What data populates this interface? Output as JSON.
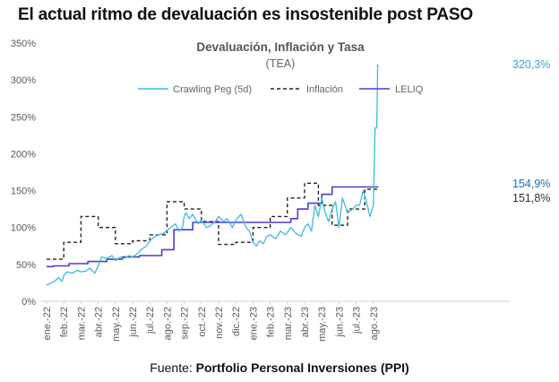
{
  "headline": "El actual ritmo de devaluación es insostenible post PASO",
  "source": {
    "prefix": "Fuente: ",
    "name": "Portfolio Personal Inversiones (PPI)"
  },
  "colors": {
    "crawling": "#3dbbdb",
    "inflacion": "#222222",
    "leliq": "#4a3fc8",
    "annot_crawling": "#2aa9d6",
    "annot_leliq": "#1f6fb3",
    "annot_inflacion": "#333333",
    "axis": "#d0d0d0"
  },
  "chart_data": {
    "type": "line",
    "title": "Devaluación, Inflación y Tasa",
    "subtitle": "(TEA)",
    "x_ticks": [
      "ene.-22",
      "feb.-22",
      "mar.-22",
      "abr.-22",
      "may.-22",
      "jun.-22",
      "jul.-22",
      "ago.-22",
      "sep.-22",
      "oct.-22",
      "nov.-22",
      "dic.-22",
      "ene.-23",
      "feb.-23",
      "mar.-23",
      "abr.-23",
      "may.-23",
      "jun.-23",
      "jul.-23",
      "ago.-23"
    ],
    "x_range": [
      0,
      19.5
    ],
    "y_ticks": [
      0,
      50,
      100,
      150,
      200,
      250,
      300,
      350
    ],
    "y_tick_labels": [
      "0%",
      "50%",
      "100%",
      "150%",
      "200%",
      "250%",
      "300%",
      "350%"
    ],
    "ylim": [
      0,
      350
    ],
    "legend": [
      "Crawling Peg (5d)",
      "Inflación",
      "LELIQ"
    ],
    "annotations": [
      {
        "series": "Crawling Peg (5d)",
        "text": "320,3%",
        "value": 320.3
      },
      {
        "series": "LELIQ",
        "text": "154,9%",
        "value": 154.9
      },
      {
        "series": "Inflación",
        "text": "151,8%",
        "value": 151.8
      }
    ],
    "series": [
      {
        "name": "Crawling Peg (5d)",
        "style": "solid-thin",
        "x": [
          0,
          0.3,
          0.5,
          0.7,
          0.9,
          1.0,
          1.2,
          1.5,
          1.8,
          2.0,
          2.3,
          2.5,
          2.8,
          3.0,
          3.2,
          3.5,
          3.8,
          4.0,
          4.3,
          4.5,
          4.8,
          5.0,
          5.3,
          5.5,
          5.8,
          6.0,
          6.3,
          6.5,
          6.8,
          7.0,
          7.2,
          7.5,
          7.7,
          7.9,
          8.0,
          8.1,
          8.3,
          8.5,
          8.8,
          9.0,
          9.3,
          9.5,
          9.8,
          10.0,
          10.3,
          10.5,
          10.8,
          11.0,
          11.3,
          11.6,
          11.8,
          12.0,
          12.2,
          12.4,
          12.6,
          12.8,
          13.0,
          13.3,
          13.6,
          13.9,
          14.2,
          14.5,
          14.8,
          15.0,
          15.2,
          15.4,
          15.6,
          15.8,
          16.0,
          16.2,
          16.4,
          16.6,
          16.8,
          17.0,
          17.2,
          17.5,
          17.8,
          18.0,
          18.2,
          18.4,
          18.6,
          18.8,
          19.0,
          19.1,
          19.2,
          19.25,
          19.3
        ],
        "y": [
          22,
          25,
          28,
          32,
          27,
          35,
          40,
          38,
          42,
          40,
          41,
          45,
          38,
          48,
          60,
          58,
          62,
          55,
          60,
          58,
          62,
          60,
          65,
          70,
          75,
          82,
          88,
          90,
          92,
          96,
          100,
          105,
          95,
          100,
          115,
          120,
          112,
          118,
          105,
          110,
          100,
          102,
          108,
          115,
          108,
          112,
          100,
          110,
          118,
          100,
          95,
          80,
          75,
          82,
          78,
          88,
          90,
          85,
          95,
          90,
          100,
          92,
          88,
          100,
          105,
          95,
          130,
          115,
          140,
          120,
          108,
          125,
          135,
          100,
          140,
          120,
          125,
          130,
          130,
          150,
          135,
          115,
          130,
          235,
          235,
          320,
          320
        ]
      },
      {
        "name": "Inflación",
        "style": "dashed",
        "x": [
          0,
          1.0,
          1.0,
          2.0,
          2.0,
          3.0,
          3.0,
          4.0,
          4.0,
          5.0,
          5.0,
          6.0,
          6.0,
          7.0,
          7.0,
          8.0,
          8.0,
          9.0,
          9.0,
          10.0,
          10.0,
          11.0,
          11.0,
          12.0,
          12.0,
          13.0,
          13.0,
          14.0,
          14.0,
          15.0,
          15.0,
          15.8,
          15.8,
          16.6,
          16.6,
          17.5,
          17.5,
          18.5,
          18.5,
          19.3
        ],
        "y": [
          57,
          57,
          80,
          80,
          115,
          115,
          100,
          100,
          78,
          78,
          82,
          82,
          90,
          90,
          135,
          135,
          125,
          125,
          108,
          108,
          77,
          77,
          80,
          80,
          100,
          100,
          115,
          115,
          140,
          140,
          160,
          160,
          130,
          130,
          103,
          103,
          125,
          125,
          151.8,
          151.8
        ]
      },
      {
        "name": "LELIQ",
        "style": "solid",
        "x": [
          0,
          0.4,
          0.4,
          1.3,
          1.3,
          2.4,
          2.4,
          3.5,
          3.5,
          4.4,
          4.4,
          5.4,
          5.4,
          6.7,
          6.7,
          7.4,
          7.4,
          8.5,
          8.5,
          9.3,
          9.3,
          10.5,
          10.5,
          11.7,
          11.7,
          13.1,
          13.1,
          14.2,
          14.2,
          14.6,
          14.6,
          15.2,
          15.2,
          16.0,
          16.0,
          16.6,
          16.6,
          19.3
        ],
        "y": [
          47,
          47,
          48,
          48,
          51,
          51,
          54,
          54,
          57,
          57,
          60,
          60,
          62,
          62,
          70,
          70,
          97,
          97,
          107,
          107,
          107,
          107,
          107,
          107,
          107,
          107,
          107,
          107,
          112,
          112,
          125,
          125,
          133,
          133,
          145,
          145,
          154.9,
          154.9
        ]
      }
    ]
  }
}
